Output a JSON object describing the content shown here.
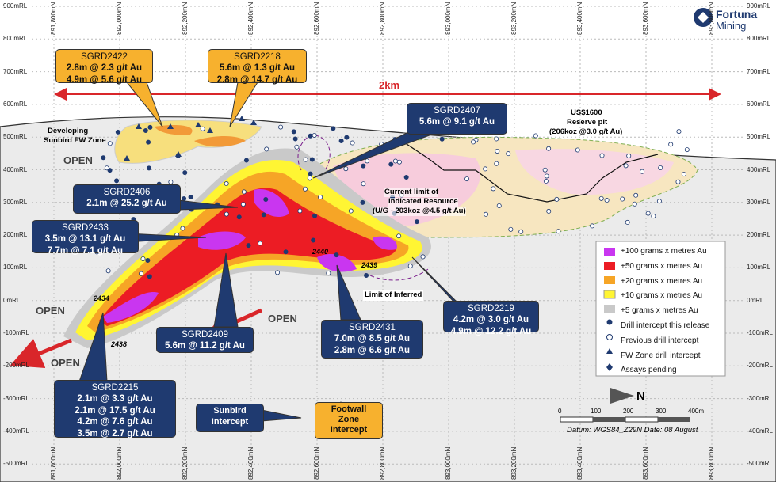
{
  "elevations": [
    "900mRL",
    "800mRL",
    "700mRL",
    "600mRL",
    "500mRL",
    "400mRL",
    "300mRL",
    "200mRL",
    "100mRL",
    "0mRL",
    "-100mRL",
    "-200mRL",
    "-300mRL",
    "-400mRL",
    "-500mRL"
  ],
  "northings": [
    "891,800mN",
    "892,000mN",
    "892,200mN",
    "892,400mN",
    "892,600mN",
    "892,800mN",
    "893,000mN",
    "893,200mN",
    "893,400mN",
    "893,600mN",
    "893,800mN"
  ],
  "logo": {
    "name": "Fortuna",
    "sub": "Mining"
  },
  "scale_text": "2km",
  "callouts": [
    {
      "id": "SGRD2422",
      "lines": [
        "2.8m @ 2.3 g/t Au",
        "4.9m @ 5.6 g/t Au"
      ]
    },
    {
      "id": "SGRD2218",
      "lines": [
        "5.6m @ 1.3 g/t Au",
        "2.8m @ 14.7 g/t Au"
      ]
    },
    {
      "id": "SGRD2407",
      "lines": [
        "5.6m @ 9.1 g/t Au"
      ]
    },
    {
      "id": "SGRD2406",
      "lines": [
        "2.1m @ 25.2 g/t Au"
      ]
    },
    {
      "id": "SGRD2433",
      "lines": [
        "3.5m @ 13.1 g/t Au",
        "7.7m @ 7.1 g/t Au"
      ]
    },
    {
      "id": "SGRD2409",
      "lines": [
        "5.6m @ 11.2 g/t Au"
      ]
    },
    {
      "id": "SGRD2431",
      "lines": [
        "7.0m @ 8.5 g/t Au",
        "2.8m @ 6.6 g/t Au"
      ]
    },
    {
      "id": "SGRD2219",
      "lines": [
        "4.2m @ 3.0 g/t Au",
        "4.9m @ 12.2 g/t Au"
      ]
    },
    {
      "id": "SGRD2215",
      "lines": [
        "2.1m @ 3.3 g/t Au",
        "2.1m @ 17.5 g/t Au",
        "4.2m @ 7.6 g/t Au",
        "3.5m @ 2.7 g/t Au"
      ]
    }
  ],
  "annotations": {
    "fw_zone": [
      "Developing",
      "Sunbird FW Zone"
    ],
    "open": [
      "OPEN",
      "OPEN",
      "OPEN",
      "OPEN"
    ],
    "pit": [
      "US$1600",
      "Reserve pit",
      "(206koz @3.0 g/t Au)"
    ],
    "indicated": [
      "Current limit of",
      "Indicated Resource",
      "(U/G - 203koz @4.5 g/t Au)"
    ],
    "inferred": "Limit of Inferred",
    "holes": [
      "2434",
      "2438",
      "2440",
      "2439"
    ]
  },
  "legend": [
    "+100 grams x metres Au",
    "+50 grams x metres Au",
    "+20 grams x metres Au",
    "+10 grams x metres Au",
    "+5 grams x metres Au",
    "Drill intercept this release",
    "Previous drill intercept",
    "FW Zone drill intercept",
    "Assays pending"
  ],
  "intercept_boxes": {
    "sunbird": [
      "Sunbird",
      "Intercept"
    ],
    "footwall": [
      "Footwall",
      "Zone",
      "Intercept"
    ]
  },
  "north": "N",
  "scalebar": {
    "labels": [
      "0",
      "100",
      "200",
      "300",
      "400m"
    ],
    "datum": "Datum: WGS84_Z29N Date: 08 August"
  }
}
